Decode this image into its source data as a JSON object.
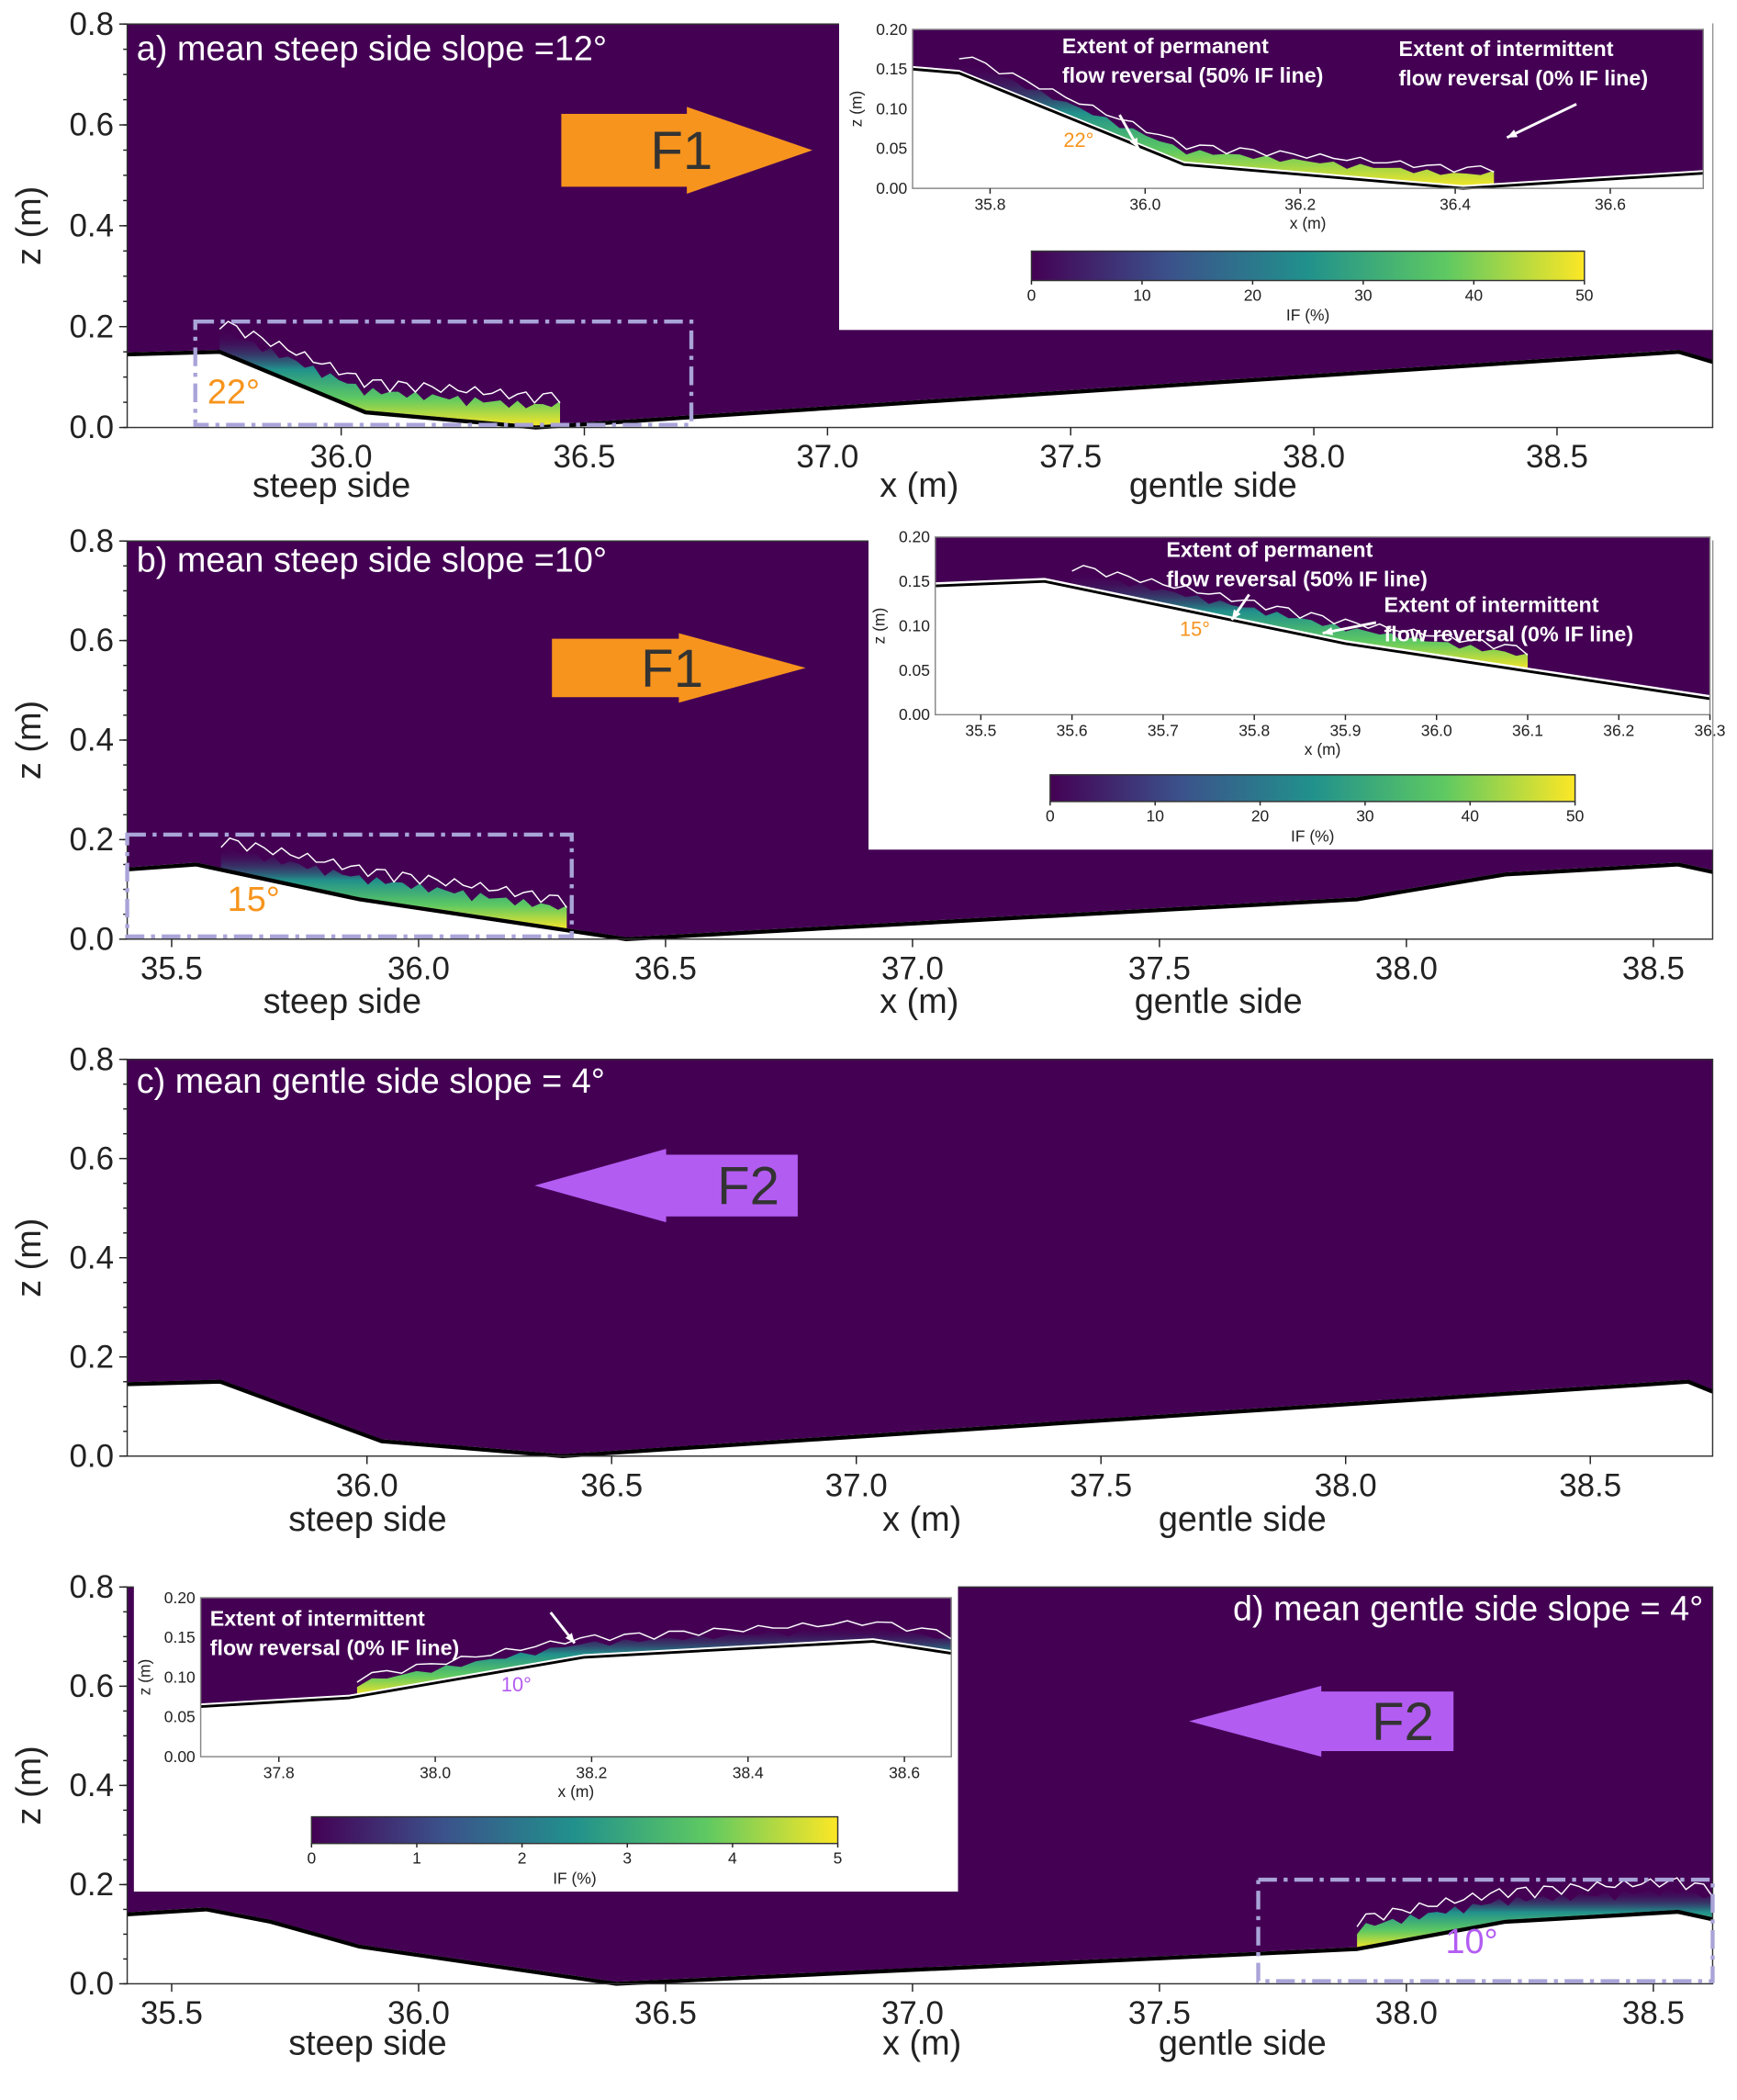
{
  "colors": {
    "background": "#440154",
    "orange": "#f7941d",
    "purple": "#b35cf2",
    "dash": "#a9a4d8"
  },
  "chart_data": {
    "type": "heatmap",
    "xlabel": "x (m)",
    "ylabel": "z (m)",
    "ylim": [
      0,
      0.8
    ],
    "yticks": [
      "0.0",
      "0.2",
      "0.4",
      "0.6",
      "0.8"
    ],
    "panels": [
      {
        "id": "a",
        "title": "a) mean steep side slope =12°",
        "xlim": [
          35.56,
          38.82
        ],
        "xticks": [
          "36.0",
          "36.5",
          "37.0",
          "37.5",
          "38.0",
          "38.5"
        ],
        "side_labels": {
          "left": "steep side",
          "right": "gentle side"
        },
        "flow_label": "F1",
        "flow_direction": "right",
        "angle_label": "22°",
        "bed": [
          [
            35.56,
            0.145
          ],
          [
            35.75,
            0.15
          ],
          [
            36.05,
            0.03
          ],
          [
            36.4,
            0.0
          ],
          [
            38.75,
            0.15
          ],
          [
            38.82,
            0.13
          ]
        ],
        "heat_zone": [
          35.75,
          36.45
        ],
        "zoom_box": {
          "x": [
            35.7,
            36.72
          ],
          "z": [
            0,
            0.21
          ]
        },
        "inset": {
          "xlim": [
            35.7,
            36.72
          ],
          "ylim": [
            0,
            0.2
          ],
          "xticks": [
            "35.8",
            "36.0",
            "36.2",
            "36.4",
            "36.6"
          ],
          "yticks": [
            "0.00",
            "0.05",
            "0.10",
            "0.15",
            "0.20"
          ],
          "xlabel": "x (m)",
          "ylabel": "z (m)",
          "bed": [
            [
              35.7,
              0.15
            ],
            [
              35.76,
              0.145
            ],
            [
              36.05,
              0.03
            ],
            [
              36.41,
              0.0
            ],
            [
              36.72,
              0.019
            ]
          ],
          "heat_zone": [
            35.76,
            36.45
          ],
          "angle_label": "22°",
          "annotations": [
            {
              "line1": "Extent of permanent",
              "line2": "flow reversal (50% IF line)"
            },
            {
              "line1": "Extent of intermittent",
              "line2": "flow reversal (0% IF line)"
            }
          ],
          "colorbar": {
            "label": "IF (%)",
            "range": [
              0,
              50
            ],
            "ticks": [
              "0",
              "10",
              "20",
              "30",
              "40",
              "50"
            ]
          }
        }
      },
      {
        "id": "b",
        "title": "b) mean steep side slope =10°",
        "xlim": [
          35.41,
          38.62
        ],
        "xticks": [
          "35.5",
          "36.0",
          "36.5",
          "37.0",
          "37.5",
          "38.0",
          "38.5"
        ],
        "side_labels": {
          "left": "steep side",
          "right": "gentle side"
        },
        "flow_label": "F1",
        "flow_direction": "right",
        "angle_label": "15°",
        "bed": [
          [
            35.41,
            0.14
          ],
          [
            35.55,
            0.15
          ],
          [
            35.88,
            0.08
          ],
          [
            36.42,
            0.0
          ],
          [
            37.9,
            0.08
          ],
          [
            38.2,
            0.13
          ],
          [
            38.55,
            0.15
          ],
          [
            38.62,
            0.135
          ]
        ],
        "heat_zone": [
          35.6,
          36.3
        ],
        "zoom_box": {
          "x": [
            35.41,
            36.31
          ],
          "z": [
            0,
            0.21
          ]
        },
        "inset": {
          "xlim": [
            35.45,
            36.3
          ],
          "ylim": [
            0,
            0.2
          ],
          "xticks": [
            "35.5",
            "35.6",
            "35.7",
            "35.8",
            "35.9",
            "36.0",
            "36.1",
            "36.2",
            "36.3"
          ],
          "yticks": [
            "0.00",
            "0.05",
            "0.10",
            "0.15",
            "0.20"
          ],
          "xlabel": "x (m)",
          "ylabel": "z (m)",
          "bed": [
            [
              35.45,
              0.145
            ],
            [
              35.57,
              0.15
            ],
            [
              35.9,
              0.08
            ],
            [
              36.3,
              0.018
            ]
          ],
          "heat_zone": [
            35.6,
            36.1
          ],
          "angle_label": "15°",
          "annotations": [
            {
              "line1": "Extent of permanent",
              "line2": "flow reversal (50% IF line)"
            },
            {
              "line1": "Extent of intermittent",
              "line2": "flow reversal (0% IF line)"
            }
          ],
          "colorbar": {
            "label": "IF (%)",
            "range": [
              0,
              50
            ],
            "ticks": [
              "0",
              "10",
              "20",
              "30",
              "40",
              "50"
            ]
          }
        }
      },
      {
        "id": "c",
        "title": "c) mean gentle side slope = 4°",
        "xlim": [
          35.51,
          38.75
        ],
        "xticks": [
          "36.0",
          "36.5",
          "37.0",
          "37.5",
          "38.0",
          "38.5"
        ],
        "side_labels": {
          "left": "steep side",
          "right": "gentle side"
        },
        "flow_label": "F2",
        "flow_direction": "left",
        "bed": [
          [
            35.51,
            0.145
          ],
          [
            35.7,
            0.15
          ],
          [
            36.03,
            0.03
          ],
          [
            36.4,
            0.0
          ],
          [
            38.7,
            0.15
          ],
          [
            38.75,
            0.13
          ]
        ]
      },
      {
        "id": "d",
        "title": "d) mean gentle side slope = 4°",
        "xlim": [
          35.41,
          38.62
        ],
        "xticks": [
          "35.5",
          "36.0",
          "36.5",
          "37.0",
          "37.5",
          "38.0",
          "38.5"
        ],
        "side_labels": {
          "left": "steep side",
          "right": "gentle side"
        },
        "flow_label": "F2",
        "flow_direction": "left",
        "angle_label": "10°",
        "bed": [
          [
            35.41,
            0.14
          ],
          [
            35.57,
            0.15
          ],
          [
            35.7,
            0.125
          ],
          [
            35.88,
            0.075
          ],
          [
            36.4,
            0.0
          ],
          [
            37.9,
            0.07
          ],
          [
            38.2,
            0.125
          ],
          [
            38.55,
            0.145
          ],
          [
            38.62,
            0.13
          ]
        ],
        "heat_zone": [
          37.9,
          38.62
        ],
        "zoom_box": {
          "x": [
            37.7,
            38.62
          ],
          "z": [
            0,
            0.21
          ]
        },
        "inset": {
          "xlim": [
            37.7,
            38.66
          ],
          "ylim": [
            0,
            0.2
          ],
          "xticks": [
            "37.8",
            "38.0",
            "38.2",
            "38.4",
            "38.6"
          ],
          "yticks": [
            "0.00",
            "0.05",
            "0.10",
            "0.15",
            "0.20"
          ],
          "xlabel": "x (m)",
          "ylabel": "z (m)",
          "bed": [
            [
              37.7,
              0.063
            ],
            [
              37.89,
              0.074
            ],
            [
              38.19,
              0.125
            ],
            [
              38.56,
              0.145
            ],
            [
              38.66,
              0.13
            ]
          ],
          "heat_zone": [
            37.9,
            38.66
          ],
          "angle_label": "10°",
          "annotations": [
            {
              "line1": "Extent of intermittent",
              "line2": "flow reversal (0% IF line)"
            }
          ],
          "colorbar": {
            "label": "IF (%)",
            "range": [
              0,
              5
            ],
            "ticks": [
              "0",
              "1",
              "2",
              "3",
              "4",
              "5"
            ]
          }
        }
      }
    ]
  }
}
